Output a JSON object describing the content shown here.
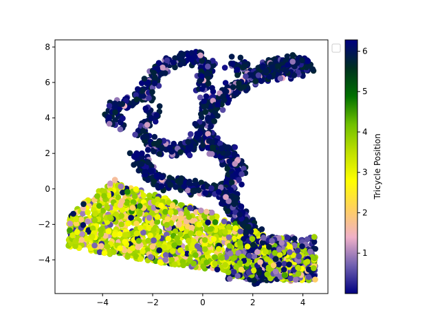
{
  "chart_data": {
    "type": "scatter",
    "title": "",
    "xlabel": "",
    "ylabel": "",
    "xlim": [
      -5.9,
      5.0
    ],
    "ylim": [
      -5.9,
      8.4
    ],
    "x_ticks": [
      -4,
      -2,
      0,
      2,
      4
    ],
    "y_ticks": [
      -4,
      -2,
      0,
      2,
      4,
      6,
      8
    ],
    "grid": false,
    "legend": {
      "placement": "top-right",
      "entries": []
    },
    "colorbar": {
      "label": "Tricycle Position",
      "range": [
        0.0,
        6.28
      ],
      "ticks": [
        1,
        2,
        3,
        4,
        5,
        6
      ],
      "colormap": "gist_stern-like",
      "colors": [
        "#000080",
        "#7060b0",
        "#f0b0c8",
        "#ffd060",
        "#ffff00",
        "#c0e000",
        "#70c000",
        "#007000",
        "#003020",
        "#000080"
      ]
    },
    "clusters": [
      {
        "region": "upper loop and right arm",
        "x_range": [
          -4.0,
          4.4
        ],
        "y_range": [
          0.0,
          7.8
        ],
        "dominant_value": 6.0
      },
      {
        "region": "lower-left band",
        "x_range": [
          -5.4,
          1.5
        ],
        "y_range": [
          -4.8,
          0.8
        ],
        "dominant_value": 3.5
      },
      {
        "region": "lower-right tail",
        "x_range": [
          1.0,
          4.6
        ],
        "y_range": [
          -5.3,
          -2.5
        ],
        "dominant_value": 2.0
      }
    ]
  }
}
